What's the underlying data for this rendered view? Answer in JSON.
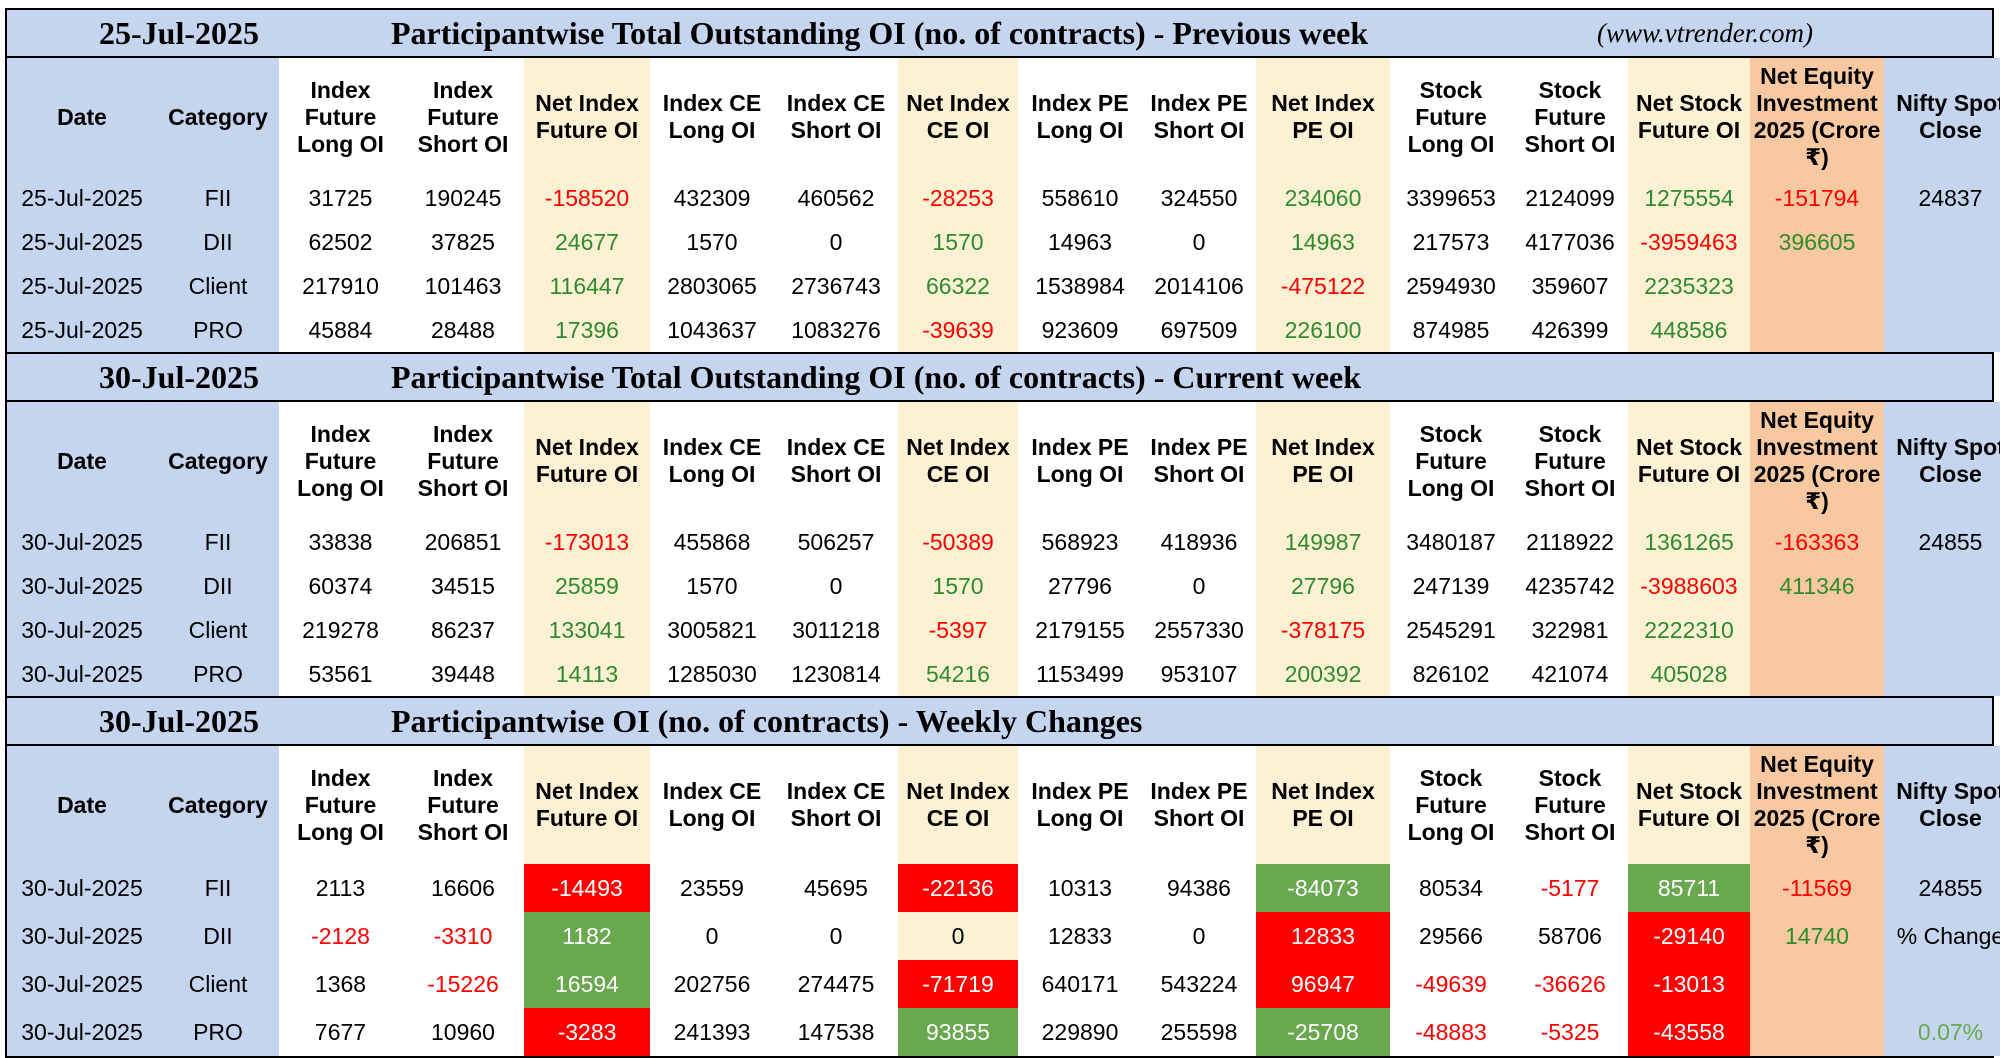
{
  "site": "(www.vtrender.com)",
  "columns": [
    "Date",
    "Category",
    "Index Future Long OI",
    "Index Future Short OI",
    "Net Index Future OI",
    "Index CE Long OI",
    "Index CE Short OI",
    "Net Index CE OI",
    "Index PE Long OI",
    "Index PE Short OI",
    "Net Index PE OI",
    "Stock Future Long OI",
    "Stock Future Short OI",
    "Net Stock Future OI",
    "Net Equity Investment 2025 (Crore ₹)",
    "Nifty Spot Close"
  ],
  "sections": [
    {
      "date": "25-Jul-2025",
      "title": "Participantwise Total Outstanding OI (no. of contracts) - Previous week",
      "rows": [
        [
          "25-Jul-2025",
          "FII",
          "31725",
          "190245",
          "-158520",
          "432309",
          "460562",
          "-28253",
          "558610",
          "324550",
          "234060",
          "3399653",
          "2124099",
          "1275554",
          "-151794",
          "24837"
        ],
        [
          "25-Jul-2025",
          "DII",
          "62502",
          "37825",
          "24677",
          "1570",
          "0",
          "1570",
          "14963",
          "0",
          "14963",
          "217573",
          "4177036",
          "-3959463",
          "396605",
          ""
        ],
        [
          "25-Jul-2025",
          "Client",
          "217910",
          "101463",
          "116447",
          "2803065",
          "2736743",
          "66322",
          "1538984",
          "2014106",
          "-475122",
          "2594930",
          "359607",
          "2235323",
          "",
          ""
        ],
        [
          "25-Jul-2025",
          "PRO",
          "45884",
          "28488",
          "17396",
          "1043637",
          "1083276",
          "-39639",
          "923609",
          "697509",
          "226100",
          "874985",
          "426399",
          "448586",
          "",
          ""
        ]
      ]
    },
    {
      "date": "30-Jul-2025",
      "title": "Participantwise Total Outstanding OI (no. of contracts) - Current week",
      "rows": [
        [
          "30-Jul-2025",
          "FII",
          "33838",
          "206851",
          "-173013",
          "455868",
          "506257",
          "-50389",
          "568923",
          "418936",
          "149987",
          "3480187",
          "2118922",
          "1361265",
          "-163363",
          "24855"
        ],
        [
          "30-Jul-2025",
          "DII",
          "60374",
          "34515",
          "25859",
          "1570",
          "0",
          "1570",
          "27796",
          "0",
          "27796",
          "247139",
          "4235742",
          "-3988603",
          "411346",
          ""
        ],
        [
          "30-Jul-2025",
          "Client",
          "219278",
          "86237",
          "133041",
          "3005821",
          "3011218",
          "-5397",
          "2179155",
          "2557330",
          "-378175",
          "2545291",
          "322981",
          "2222310",
          "",
          ""
        ],
        [
          "30-Jul-2025",
          "PRO",
          "53561",
          "39448",
          "14113",
          "1285030",
          "1230814",
          "54216",
          "1153499",
          "953107",
          "200392",
          "826102",
          "421074",
          "405028",
          "",
          ""
        ]
      ]
    },
    {
      "date": "30-Jul-2025",
      "title": "Participantwise OI (no. of contracts) - Weekly Changes",
      "rows": [
        [
          "30-Jul-2025",
          "FII",
          "2113",
          "16606",
          "-14493",
          "23559",
          "45695",
          "-22136",
          "10313",
          "94386",
          "-84073",
          "80534",
          "-5177",
          "85711",
          "-11569",
          "24855"
        ],
        [
          "30-Jul-2025",
          "DII",
          "-2128",
          "-3310",
          "1182",
          "0",
          "0",
          "0",
          "12833",
          "0",
          "12833",
          "29566",
          "58706",
          "-29140",
          "14740",
          "% Change"
        ],
        [
          "30-Jul-2025",
          "Client",
          "1368",
          "-15226",
          "16594",
          "202756",
          "274475",
          "-71719",
          "640171",
          "543224",
          "96947",
          "-49639",
          "-36626",
          "-13013",
          "",
          ""
        ],
        [
          "30-Jul-2025",
          "PRO",
          "7677",
          "10960",
          "-3283",
          "241393",
          "147538",
          "93855",
          "229890",
          "255598",
          "-25708",
          "-48883",
          "-5325",
          "-43558",
          "",
          "0.07%"
        ]
      ]
    }
  ],
  "colors": {
    "header_blue": "#c6d5ef",
    "cream": "#fdf1d4",
    "peach": "#f8c9a0",
    "negative": "#ff0000",
    "positive": "#2e8b2e",
    "box_red": "#ff0000",
    "box_green": "#6aa84f"
  }
}
